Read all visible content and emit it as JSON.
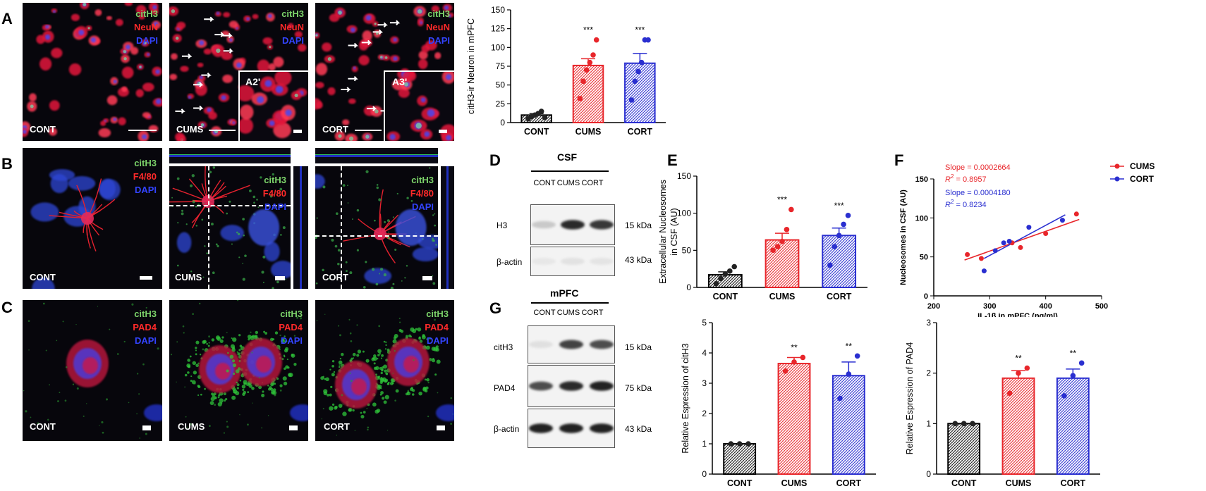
{
  "panels": {
    "A": "A",
    "B": "B",
    "C": "C",
    "D": "D",
    "E": "E",
    "F": "F",
    "G": "G"
  },
  "micrographs": {
    "A": {
      "stains": [
        "citH3",
        "NeuN",
        "DAPI"
      ],
      "conditions": [
        "CONT",
        "CUMS",
        "CORT"
      ],
      "insets": [
        "A2'",
        "A3'"
      ]
    },
    "B": {
      "stains": [
        "citH3",
        "F4/80",
        "DAPI"
      ],
      "conditions": [
        "CONT",
        "CUMS",
        "CORT"
      ]
    },
    "C": {
      "stains": [
        "citH3",
        "PAD4",
        "DAPI"
      ],
      "conditions": [
        "CONT",
        "CUMS",
        "CORT"
      ]
    }
  },
  "western": {
    "D": {
      "title": "CSF",
      "lanes": [
        "CONT",
        "CUMS",
        "CORT"
      ],
      "rows": [
        {
          "protein": "H3",
          "size": "15 kDa",
          "intensity": [
            0.15,
            0.85,
            0.8
          ]
        },
        {
          "protein": "β-actin",
          "size": "43 kDa",
          "intensity": [
            0.02,
            0.04,
            0.03
          ]
        }
      ]
    },
    "G": {
      "title": "mPFC",
      "lanes": [
        "CONT",
        "CUMS",
        "CORT"
      ],
      "rows": [
        {
          "protein": "citH3",
          "size": "15 kDa",
          "intensity": [
            0.05,
            0.75,
            0.7
          ]
        },
        {
          "protein": "PAD4",
          "size": "75 kDa",
          "intensity": [
            0.7,
            0.85,
            0.9
          ]
        },
        {
          "protein": "β-actin",
          "size": "43 kDa",
          "intensity": [
            0.9,
            0.9,
            0.9
          ]
        }
      ]
    }
  },
  "colors": {
    "CONT": "#222222",
    "CUMS": "#e8262b",
    "CORT": "#2a2fd0"
  },
  "chart_data": [
    {
      "id": "A",
      "type": "bar",
      "categories": [
        "CONT",
        "CUMS",
        "CORT"
      ],
      "values": [
        10,
        76,
        79
      ],
      "errors": [
        2,
        9,
        13
      ],
      "points": [
        [
          5,
          8,
          10,
          12,
          15,
          7
        ],
        [
          32,
          55,
          70,
          80,
          90,
          110
        ],
        [
          30,
          55,
          68,
          80,
          110,
          110
        ]
      ],
      "significance": [
        "",
        "***",
        "***"
      ],
      "ylabel": "citH3-ir Neuron in mPFC",
      "ylim": [
        0,
        150
      ],
      "yticks": [
        0,
        25,
        50,
        75,
        100,
        125,
        150
      ]
    },
    {
      "id": "E",
      "type": "bar",
      "categories": [
        "CONT",
        "CUMS",
        "CORT"
      ],
      "values": [
        17,
        64,
        70
      ],
      "errors": [
        4,
        9,
        10
      ],
      "points": [
        [
          5,
          12,
          18,
          22,
          28
        ],
        [
          50,
          55,
          62,
          78,
          105
        ],
        [
          30,
          55,
          70,
          85,
          97
        ]
      ],
      "significance": [
        "",
        "***",
        "***"
      ],
      "ylabel": "Extracellular Nucleosomes in CSF (AU)",
      "ylim": [
        0,
        150
      ],
      "yticks": [
        0,
        50,
        100,
        150
      ]
    },
    {
      "id": "F",
      "type": "scatter",
      "series": [
        {
          "name": "CUMS",
          "x": [
            260,
            285,
            340,
            355,
            400,
            455
          ],
          "y": [
            53,
            48,
            68,
            62,
            80,
            105
          ],
          "slope_label": "Slope = 0.0002664",
          "r2_label": "= 0.8957"
        },
        {
          "name": "CORT",
          "x": [
            290,
            310,
            325,
            335,
            370,
            430
          ],
          "y": [
            32,
            58,
            68,
            70,
            88,
            97
          ],
          "slope_label": "Slope = 0.0004180",
          "r2_label": "= 0.8234"
        }
      ],
      "fits": [
        {
          "name": "CUMS",
          "x": [
            255,
            460
          ],
          "y": [
            46,
            98
          ]
        },
        {
          "name": "CORT",
          "x": [
            290,
            435
          ],
          "y": [
            48,
            104
          ]
        }
      ],
      "xlabel": "IL-1β in mPFC (pg/ml)",
      "ylabel": "Nucleosomes in CSF (AU)",
      "xlim": [
        200,
        500
      ],
      "ylim": [
        0,
        150
      ],
      "xticks": [
        200,
        300,
        400,
        500
      ],
      "yticks": [
        0,
        50,
        100,
        150
      ]
    },
    {
      "id": "G1",
      "type": "bar",
      "categories": [
        "CONT",
        "CUMS",
        "CORT"
      ],
      "values": [
        1.0,
        3.65,
        3.25
      ],
      "errors": [
        0,
        0.2,
        0.45
      ],
      "points": [
        [
          1,
          1,
          1
        ],
        [
          3.4,
          3.7,
          3.85
        ],
        [
          2.5,
          3.3,
          3.9
        ]
      ],
      "significance": [
        "",
        "**",
        "**"
      ],
      "ylabel": "Relative Espression of citH3",
      "ylim": [
        0,
        5
      ],
      "yticks": [
        0,
        1,
        2,
        3,
        4,
        5
      ]
    },
    {
      "id": "G2",
      "type": "bar",
      "categories": [
        "CONT",
        "CUMS",
        "CORT"
      ],
      "values": [
        1.0,
        1.9,
        1.9
      ],
      "errors": [
        0,
        0.15,
        0.18
      ],
      "points": [
        [
          1,
          1,
          1
        ],
        [
          1.6,
          2.0,
          2.1
        ],
        [
          1.55,
          1.95,
          2.2
        ]
      ],
      "significance": [
        "",
        "**",
        "**"
      ],
      "ylabel": "Relative Espression of PAD4",
      "ylim": [
        0,
        3
      ],
      "yticks": [
        0,
        1,
        2,
        3
      ]
    }
  ]
}
